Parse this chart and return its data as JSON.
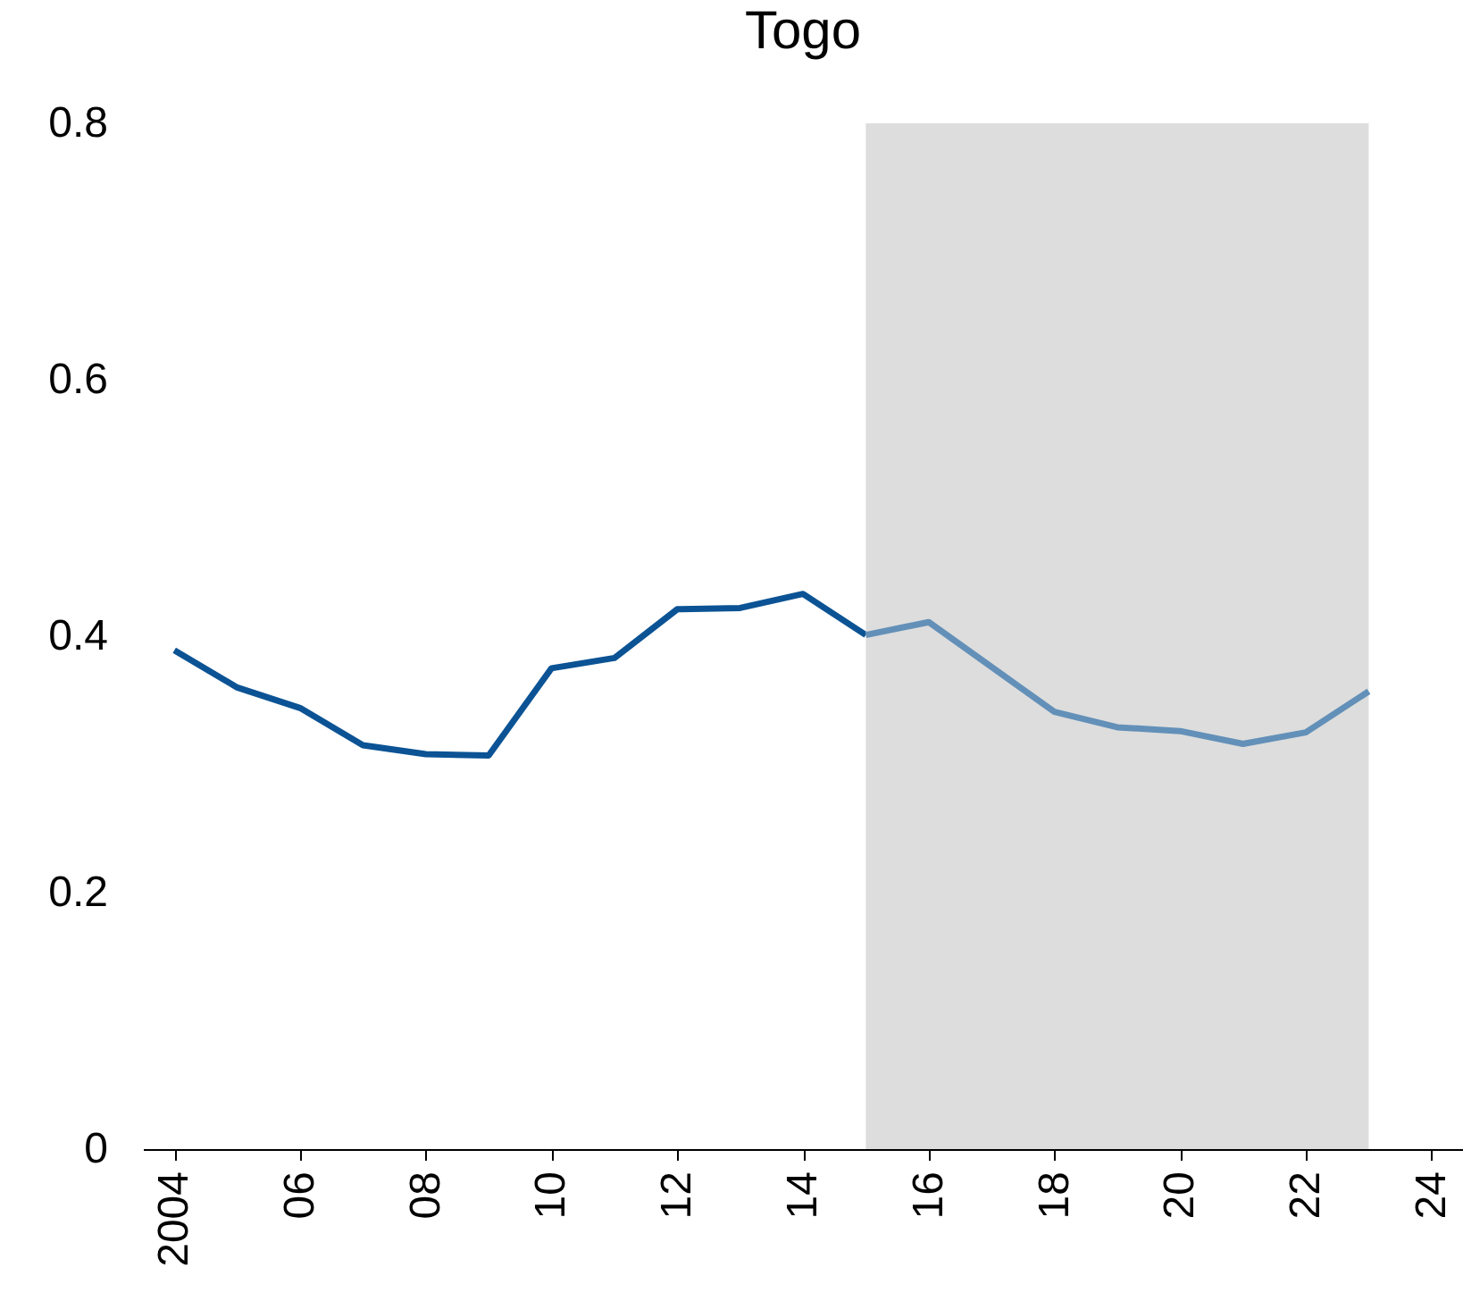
{
  "chart_data": {
    "type": "line",
    "title": "Togo",
    "series": [
      {
        "color": "#0b5394",
        "x": [
          2004,
          2005,
          2006,
          2007,
          2008,
          2009,
          2010,
          2011,
          2012,
          2013,
          2014,
          2015
        ],
        "values": [
          0.389,
          0.36,
          0.344,
          0.315,
          0.308,
          0.307,
          0.375,
          0.383,
          0.421,
          0.422,
          0.433,
          0.401
        ]
      },
      {
        "color": "#6390b8",
        "x": [
          2015,
          2016,
          2017,
          2018,
          2019,
          2020,
          2021,
          2022,
          2023
        ],
        "values": [
          0.401,
          0.411,
          0.376,
          0.341,
          0.329,
          0.326,
          0.316,
          0.325,
          0.357
        ]
      }
    ],
    "bands": [
      {
        "axis": "x",
        "from": 2015,
        "to": 2023,
        "color": "#dddddd"
      }
    ],
    "xlim": [
      2003.5,
      2024.5
    ],
    "xticks": [
      {
        "value": 2004,
        "label": "2004"
      },
      {
        "value": 2006,
        "label": "06"
      },
      {
        "value": 2008,
        "label": "08"
      },
      {
        "value": 2010,
        "label": "10"
      },
      {
        "value": 2012,
        "label": "12"
      },
      {
        "value": 2014,
        "label": "14"
      },
      {
        "value": 2016,
        "label": "16"
      },
      {
        "value": 2018,
        "label": "18"
      },
      {
        "value": 2020,
        "label": "20"
      },
      {
        "value": 2022,
        "label": "22"
      },
      {
        "value": 2024,
        "label": "24"
      }
    ],
    "ylim": [
      0,
      0.8
    ],
    "yticks": [
      0,
      0.2,
      0.4,
      0.6,
      0.8
    ],
    "grid": false,
    "marker": "none",
    "line_style": "solid"
  }
}
